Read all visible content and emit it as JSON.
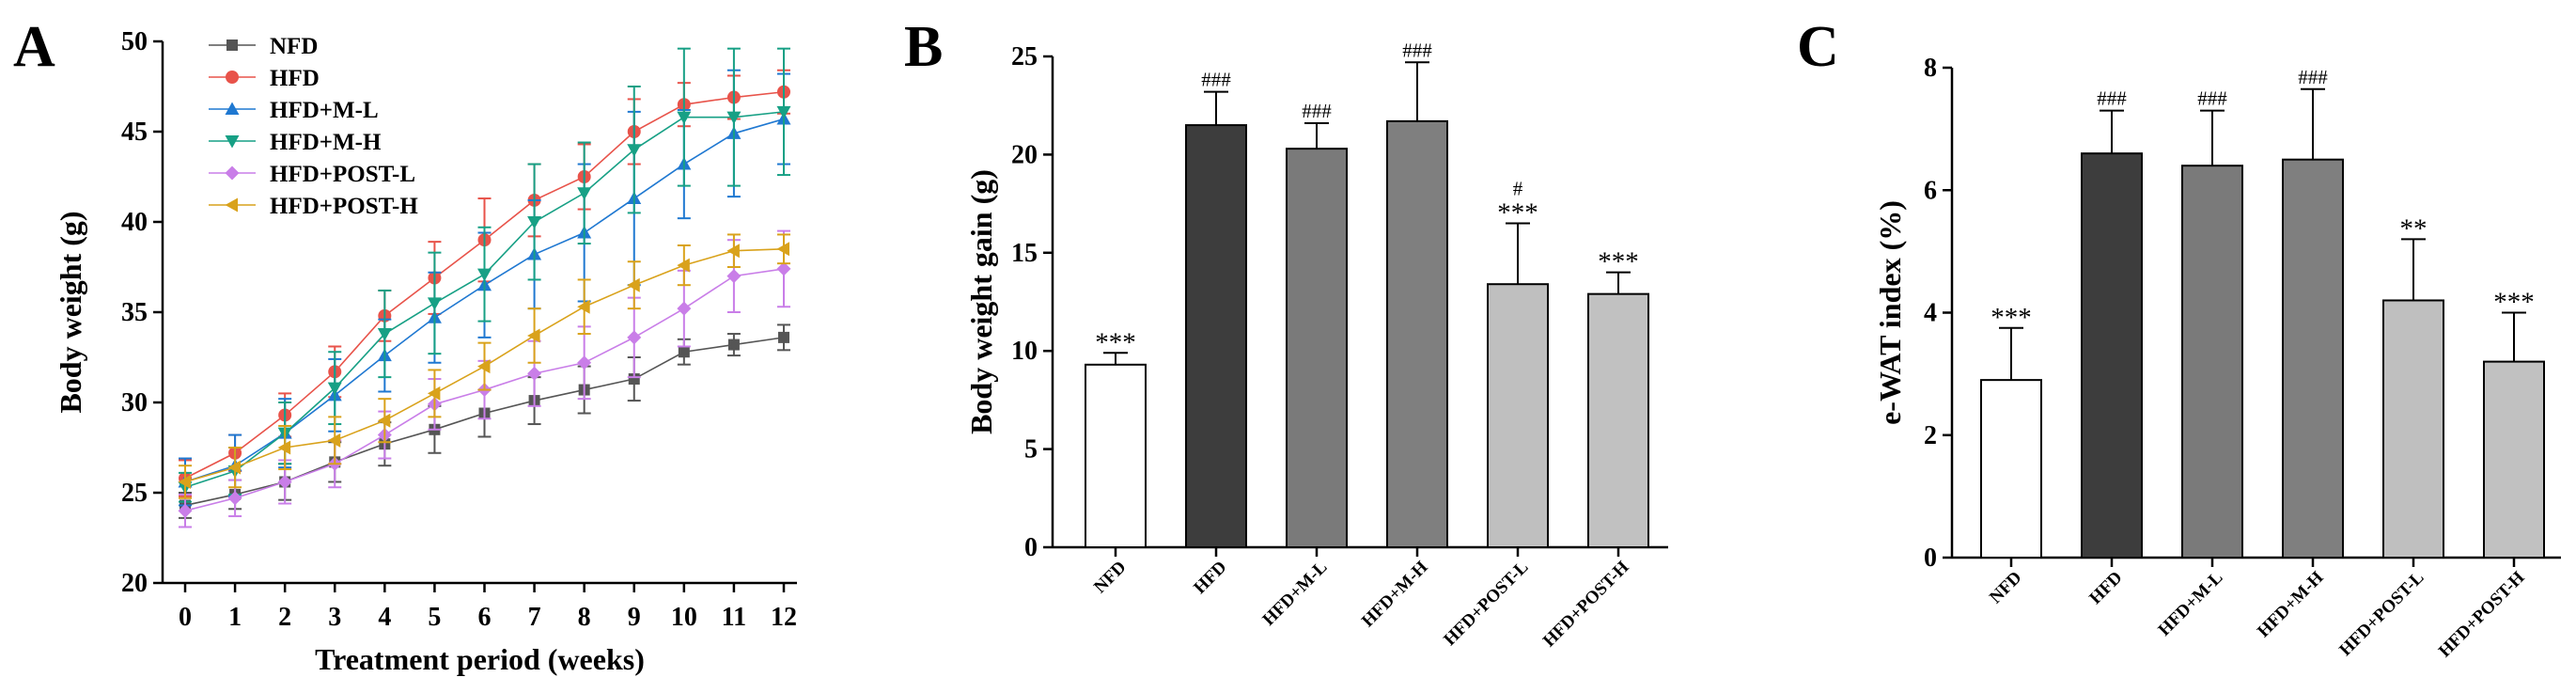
{
  "panel_labels": [
    "A",
    "B",
    "C"
  ],
  "chart_data": [
    {
      "type": "line",
      "panel": "A",
      "xlabel": "Treatment period (weeks)",
      "ylabel": "Body weight (g)",
      "x": [
        0,
        1,
        2,
        3,
        4,
        5,
        6,
        7,
        8,
        9,
        10,
        11,
        12
      ],
      "xlim": [
        0,
        12
      ],
      "ylim": [
        20,
        50
      ],
      "yticks": [
        20,
        25,
        30,
        35,
        40,
        45,
        50
      ],
      "legend_position": "top-left",
      "series": [
        {
          "name": "NFD",
          "color": "#555555",
          "marker": "square",
          "values": [
            24.3,
            24.9,
            25.6,
            26.7,
            27.7,
            28.5,
            29.4,
            30.1,
            30.7,
            31.3,
            32.8,
            33.2,
            33.6
          ],
          "errors": [
            0.7,
            0.8,
            1.0,
            1.1,
            1.2,
            1.3,
            1.3,
            1.3,
            1.3,
            1.2,
            0.7,
            0.6,
            0.7
          ]
        },
        {
          "name": "HFD",
          "color": "#e8534a",
          "marker": "circle",
          "values": [
            25.8,
            27.2,
            29.3,
            31.7,
            34.8,
            36.9,
            39.0,
            41.2,
            42.5,
            45.0,
            46.5,
            46.9,
            47.2
          ],
          "errors": [
            1.0,
            1.0,
            1.2,
            1.4,
            1.4,
            2.0,
            2.3,
            2.0,
            1.8,
            1.8,
            1.2,
            1.2,
            1.2
          ]
        },
        {
          "name": "HFD+M-L",
          "color": "#1f78d1",
          "marker": "triangle-up",
          "values": [
            25.6,
            26.5,
            28.3,
            30.4,
            32.6,
            34.7,
            36.5,
            38.2,
            39.4,
            41.3,
            43.2,
            44.9,
            45.7
          ],
          "errors": [
            1.3,
            1.7,
            1.9,
            2.0,
            2.0,
            2.5,
            2.9,
            3.0,
            3.8,
            4.8,
            3.0,
            3.5,
            2.5
          ]
        },
        {
          "name": "HFD+M-H",
          "color": "#17a085",
          "marker": "triangle-down",
          "values": [
            25.3,
            26.2,
            28.3,
            30.8,
            33.8,
            35.5,
            37.1,
            40.0,
            41.6,
            44.0,
            45.8,
            45.8,
            46.1
          ],
          "errors": [
            0.8,
            1.3,
            1.7,
            2.0,
            2.4,
            2.8,
            2.6,
            3.2,
            2.8,
            3.5,
            3.8,
            3.8,
            3.5
          ]
        },
        {
          "name": "HFD+POST-L",
          "color": "#c97ee8",
          "marker": "diamond",
          "values": [
            24.0,
            24.7,
            25.6,
            26.6,
            28.2,
            29.9,
            30.7,
            31.6,
            32.2,
            33.6,
            35.2,
            37.0,
            37.4
          ],
          "errors": [
            0.9,
            1.0,
            1.2,
            1.3,
            1.3,
            1.4,
            1.6,
            1.8,
            2.0,
            2.2,
            2.1,
            2.0,
            2.1
          ]
        },
        {
          "name": "HFD+POST-H",
          "color": "#d9a21b",
          "marker": "triangle-left",
          "values": [
            25.6,
            26.4,
            27.5,
            27.9,
            29.0,
            30.5,
            32.0,
            33.7,
            35.3,
            36.5,
            37.6,
            38.4,
            38.5
          ],
          "errors": [
            0.9,
            1.1,
            1.2,
            1.3,
            1.2,
            1.3,
            1.3,
            1.5,
            1.5,
            1.3,
            1.1,
            0.9,
            0.8
          ]
        }
      ]
    },
    {
      "type": "bar",
      "panel": "B",
      "ylabel": "Body weight gain (g)",
      "categories": [
        "NFD",
        "HFD",
        "HFD+M-L",
        "HFD+M-H",
        "HFD+POST-L",
        "HFD+POST-H"
      ],
      "values": [
        9.3,
        21.5,
        20.3,
        21.7,
        13.4,
        12.9
      ],
      "errors": [
        0.6,
        1.7,
        1.3,
        3.0,
        3.1,
        1.1
      ],
      "colors": [
        "#ffffff",
        "#3d3d3d",
        "#7a7a7a",
        "#7f7f7f",
        "#bfbfbf",
        "#c1c1c1"
      ],
      "annotations": [
        "***",
        "###",
        "###",
        "###",
        "***",
        "***"
      ],
      "annotations_extra": [
        "",
        "",
        "",
        "",
        "#",
        ""
      ],
      "ylim": [
        0,
        25
      ],
      "yticks": [
        0,
        5,
        10,
        15,
        20,
        25
      ]
    },
    {
      "type": "bar",
      "panel": "C",
      "ylabel": "e-WAT index (%)",
      "categories": [
        "NFD",
        "HFD",
        "HFD+M-L",
        "HFD+M-H",
        "HFD+POST-L",
        "HFD+POST-H"
      ],
      "values": [
        2.9,
        6.6,
        6.4,
        6.5,
        4.2,
        3.2
      ],
      "errors": [
        0.85,
        0.7,
        0.9,
        1.15,
        1.0,
        0.8
      ],
      "colors": [
        "#ffffff",
        "#3d3d3d",
        "#7a7a7a",
        "#7f7f7f",
        "#bfbfbf",
        "#c1c1c1"
      ],
      "annotations": [
        "***",
        "###",
        "###",
        "###",
        "**",
        "***"
      ],
      "annotations_extra": [
        "",
        "",
        "",
        "",
        "",
        ""
      ],
      "ylim": [
        0,
        8
      ],
      "yticks": [
        0,
        2,
        4,
        6,
        8
      ]
    }
  ]
}
